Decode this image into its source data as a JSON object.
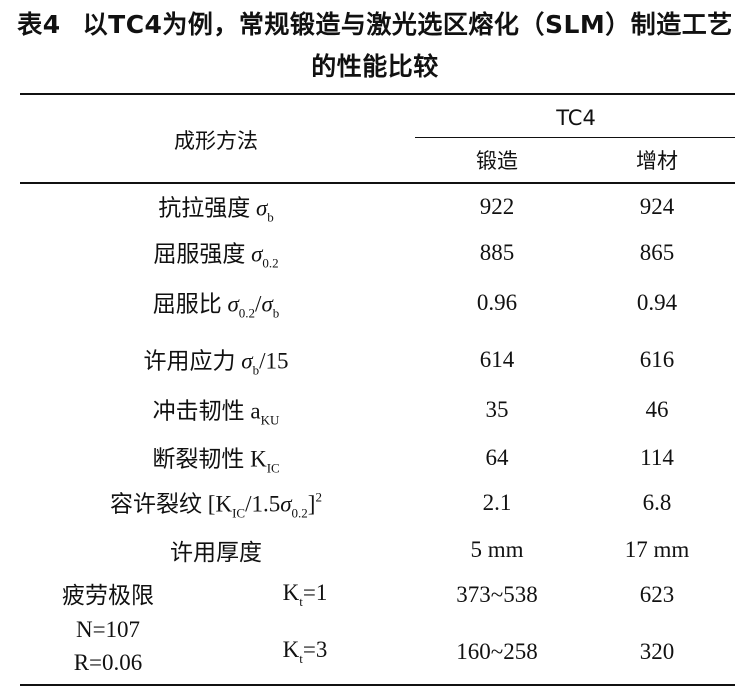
{
  "title": {
    "number": "表4",
    "text": "以TC4为例，常规锻造与激光选区熔化（SLM）制造工艺的性能比较"
  },
  "table": {
    "header": {
      "method": "成形方法",
      "material": "TC4",
      "columns": [
        "锻造",
        "增材"
      ]
    },
    "rows": [
      {
        "label": [
          {
            "text": "抗拉强度 "
          },
          {
            "text": "σ",
            "style": "italic"
          },
          {
            "text": "b",
            "style": "sub"
          }
        ],
        "values": [
          922,
          924
        ]
      },
      {
        "label": [
          {
            "text": "屈服强度 "
          },
          {
            "text": "σ",
            "style": "italic"
          },
          {
            "text": "0.2",
            "style": "sub"
          }
        ],
        "values": [
          885,
          865
        ]
      },
      {
        "label": [
          {
            "text": "屈服比 "
          },
          {
            "text": "σ",
            "style": "italic"
          },
          {
            "text": "0.2",
            "style": "sub"
          },
          {
            "text": "/"
          },
          {
            "text": "σ",
            "style": "italic"
          },
          {
            "text": "b",
            "style": "sub"
          }
        ],
        "values": [
          0.96,
          0.94
        ]
      },
      {
        "label": [
          {
            "text": "许用应力 "
          },
          {
            "text": "σ",
            "style": "italic"
          },
          {
            "text": "b",
            "style": "sub"
          },
          {
            "text": "/15"
          }
        ],
        "values": [
          614,
          616
        ]
      },
      {
        "label": [
          {
            "text": "冲击韧性  a"
          },
          {
            "text": "KU",
            "style": "sub"
          }
        ],
        "values": [
          35,
          46
        ]
      },
      {
        "label": [
          {
            "text": "断裂韧性  K"
          },
          {
            "text": "IC",
            "style": "sub"
          }
        ],
        "values": [
          64,
          114
        ]
      },
      {
        "label": [
          {
            "text": "容许裂纹  [K"
          },
          {
            "text": "IC",
            "style": "sub"
          },
          {
            "text": "/1.5"
          },
          {
            "text": "σ",
            "style": "italic"
          },
          {
            "text": "0.2",
            "style": "sub"
          },
          {
            "text": "]"
          },
          {
            "text": "2",
            "style": "sup"
          }
        ],
        "values": [
          2.1,
          6.8
        ]
      },
      {
        "label": [
          {
            "text": "许用厚度"
          }
        ],
        "values": [
          "5 mm",
          "17 mm"
        ]
      }
    ],
    "fatigue": {
      "label": [
        "疲劳极限",
        "N=107",
        "R=0.06"
      ],
      "rows": [
        {
          "condition": [
            {
              "text": "K"
            },
            {
              "text": "t",
              "style": "sub"
            },
            {
              "text": "=1"
            }
          ],
          "values": [
            "373~538",
            623
          ]
        },
        {
          "condition": [
            {
              "text": "K"
            },
            {
              "text": "t",
              "style": "sub"
            },
            {
              "text": "=3"
            }
          ],
          "values": [
            "160~258",
            320
          ]
        }
      ]
    }
  }
}
